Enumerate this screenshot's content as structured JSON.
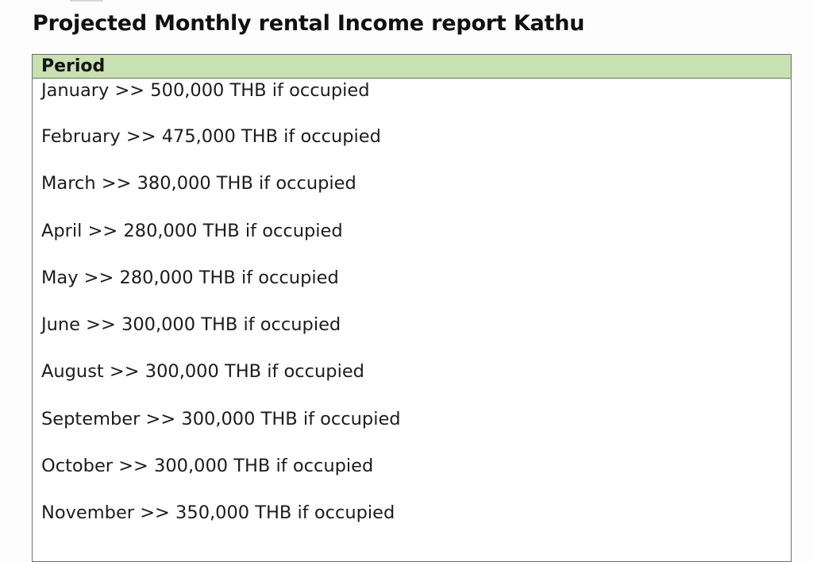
{
  "title": "Projected Monthly rental Income report Kathu",
  "table": {
    "header": "Period",
    "rows": [
      "January >> 500,000 THB if occupied",
      "February >> 475,000 THB if occupied",
      "March >> 380,000 THB if occupied",
      "April >> 280,000 THB if occupied",
      "May >> 280,000 THB if occupied",
      "June >> 300,000 THB if occupied",
      "August >> 300,000 THB if occupied",
      "September >> 300,000 THB if occupied",
      "October >> 300,000 THB if occupied",
      "November >> 350,000 THB if occupied"
    ]
  },
  "colors": {
    "header_background": "#c7e1b0",
    "border": "#6f6f6f",
    "text": "#1a1a1a"
  }
}
